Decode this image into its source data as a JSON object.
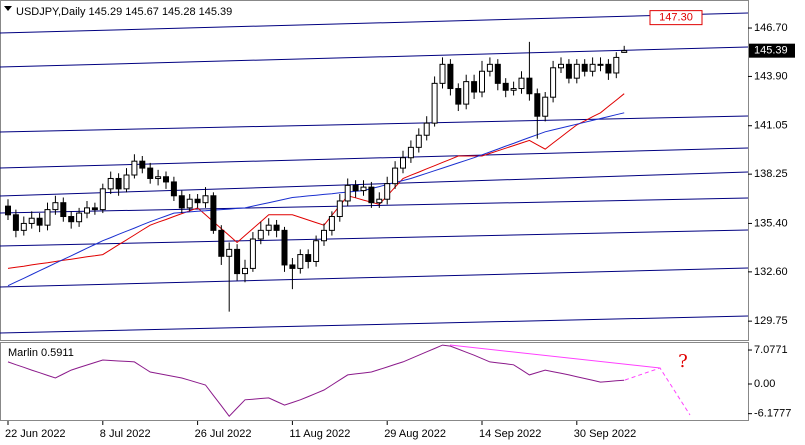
{
  "chart_data": {
    "type": "candlestick",
    "title": "USDJPY,Daily 145.29 145.67 145.28 145.39",
    "categories": [
      "22 Jun 2022",
      null,
      null,
      null,
      null,
      null,
      null,
      null,
      null,
      null,
      null,
      null,
      "8 Jul 2022",
      null,
      null,
      null,
      null,
      null,
      null,
      null,
      null,
      null,
      null,
      null,
      "26 Jul 2022",
      null,
      null,
      null,
      null,
      null,
      null,
      null,
      null,
      null,
      null,
      null,
      "11 Aug 2022",
      null,
      null,
      null,
      null,
      null,
      null,
      null,
      null,
      null,
      null,
      null,
      "29 Aug 2022",
      null,
      null,
      null,
      null,
      null,
      null,
      null,
      null,
      null,
      null,
      null,
      "14 Sep 2022",
      null,
      null,
      null,
      null,
      null,
      null,
      null,
      null,
      null,
      null,
      null,
      "30 Sep 2022",
      null,
      null,
      null,
      null,
      null,
      null
    ],
    "open": [
      136.4,
      135.9,
      135.0,
      135.4,
      135.7,
      135.3,
      136.2,
      136.6,
      135.8,
      135.5,
      136.0,
      136.3,
      136.2,
      137.4,
      138.0,
      137.4,
      138.2,
      139.0,
      138.6,
      138.0,
      138.1,
      137.8,
      137.0,
      136.3,
      136.8,
      136.6,
      137.0,
      135.0,
      133.5,
      133.9,
      132.5,
      132.8,
      134.5,
      135.0,
      135.3,
      135.0,
      133.0,
      132.8,
      133.6,
      133.2,
      134.4,
      135.0,
      135.8,
      136.7,
      137.6,
      137.3,
      137.5,
      136.6,
      136.8,
      137.7,
      138.6,
      139.2,
      139.8,
      140.5,
      141.2,
      143.5,
      144.6,
      143.2,
      142.3,
      143.6,
      143.0,
      144.2,
      144.6,
      143.5,
      143.1,
      143.2,
      143.8,
      142.9,
      141.6,
      142.7,
      144.4,
      144.6,
      143.8,
      144.6,
      144.2,
      144.6,
      144.6,
      144.1,
      145.29
    ],
    "high": [
      136.8,
      136.2,
      135.8,
      136.1,
      136.0,
      136.6,
      137.0,
      136.9,
      136.1,
      136.3,
      136.7,
      136.6,
      137.7,
      138.4,
      138.3,
      138.6,
      139.4,
      139.3,
      138.9,
      138.5,
      138.4,
      138.1,
      137.3,
      137.1,
      137.1,
      137.5,
      137.2,
      135.3,
      134.3,
      134.2,
      133.3,
      134.9,
      135.5,
      135.7,
      135.6,
      135.2,
      133.4,
      133.9,
      133.9,
      134.7,
      135.4,
      136.1,
      137.1,
      138.0,
      137.9,
      137.9,
      137.8,
      137.2,
      138.1,
      139.0,
      139.6,
      140.2,
      140.9,
      141.6,
      143.9,
      145.0,
      144.9,
      143.5,
      144.0,
      144.0,
      144.8,
      145.0,
      144.9,
      143.8,
      143.6,
      144.2,
      145.9,
      143.2,
      143.0,
      144.8,
      145.0,
      144.9,
      144.9,
      144.9,
      145.0,
      145.0,
      144.9,
      145.3,
      145.67
    ],
    "low": [
      135.6,
      134.6,
      134.7,
      135.1,
      134.9,
      135.0,
      135.9,
      135.5,
      135.1,
      135.2,
      135.7,
      135.9,
      136.0,
      137.1,
      137.0,
      137.2,
      138.0,
      138.3,
      137.7,
      137.6,
      137.4,
      136.7,
      136.0,
      136.1,
      136.3,
      136.3,
      134.8,
      133.0,
      130.3,
      132.1,
      132.0,
      132.6,
      134.2,
      134.7,
      134.6,
      132.6,
      131.6,
      132.5,
      132.8,
      132.9,
      134.1,
      134.7,
      135.5,
      136.4,
      136.9,
      137.0,
      136.3,
      136.3,
      136.5,
      137.4,
      138.3,
      138.9,
      139.5,
      140.2,
      141.0,
      143.2,
      142.8,
      141.9,
      142.0,
      142.6,
      142.7,
      143.9,
      143.1,
      142.7,
      142.8,
      142.9,
      142.5,
      140.3,
      141.3,
      142.4,
      144.1,
      143.5,
      143.5,
      143.9,
      143.9,
      144.2,
      143.7,
      143.8,
      145.28
    ],
    "close": [
      135.9,
      135.0,
      135.4,
      135.7,
      135.3,
      136.2,
      136.6,
      135.8,
      135.5,
      136.0,
      136.3,
      136.2,
      137.4,
      138.0,
      137.4,
      138.2,
      139.0,
      138.6,
      138.0,
      138.1,
      137.8,
      137.0,
      136.3,
      136.8,
      136.6,
      137.0,
      135.0,
      133.5,
      133.9,
      132.5,
      132.8,
      134.5,
      135.0,
      135.3,
      135.0,
      133.0,
      132.8,
      133.6,
      133.2,
      134.4,
      135.0,
      135.8,
      136.7,
      137.6,
      137.3,
      137.5,
      136.6,
      136.8,
      137.7,
      138.6,
      139.2,
      139.8,
      140.5,
      141.2,
      143.5,
      144.6,
      143.2,
      142.3,
      143.6,
      143.0,
      144.2,
      144.6,
      143.5,
      143.1,
      143.2,
      143.8,
      142.9,
      141.6,
      142.7,
      144.4,
      144.6,
      143.8,
      144.6,
      144.2,
      144.6,
      144.6,
      144.1,
      145.0,
      145.39
    ],
    "series": [
      {
        "color": "#e00000",
        "values": [
          132.8,
          132.87,
          132.93,
          133,
          133.07,
          133.13,
          133.2,
          133.27,
          133.33,
          133.4,
          133.47,
          133.53,
          133.6,
          133.88,
          134.17,
          134.45,
          134.73,
          135.02,
          135.3,
          135.47,
          135.63,
          135.8,
          135.97,
          136.13,
          136.3,
          135.9,
          135.5,
          135.1,
          134.7,
          134.3,
          134.7,
          135.1,
          135.5,
          135.9,
          135.9,
          135.9,
          135.9,
          135.75,
          135.6,
          135.45,
          135.3,
          135.87,
          136.43,
          137,
          136.88,
          136.75,
          136.63,
          136.5,
          137,
          137.5,
          138,
          138.19,
          138.37,
          138.56,
          138.74,
          138.93,
          139.11,
          139.3,
          139.3,
          139.3,
          139.3,
          139.45,
          139.6,
          139.75,
          139.9,
          140.05,
          140.2,
          139.95,
          139.7,
          140.05,
          140.4,
          140.75,
          141.1,
          141.33,
          141.57,
          141.8,
          142.17,
          142.53,
          142.9
        ]
      },
      {
        "color": "#1a2fd0",
        "values": [
          131.8,
          132.02,
          132.23,
          132.45,
          132.67,
          132.88,
          133.1,
          133.32,
          133.53,
          133.75,
          133.97,
          134.18,
          134.4,
          134.58,
          134.77,
          134.95,
          135.13,
          135.32,
          135.5,
          135.67,
          135.83,
          136,
          136.03,
          136.07,
          136.1,
          136.13,
          136.17,
          136.2,
          136.23,
          136.27,
          136.3,
          136.4,
          136.5,
          136.6,
          136.7,
          136.8,
          136.9,
          136.94,
          136.99,
          137.03,
          137.08,
          137.12,
          137.17,
          137.21,
          137.26,
          137.3,
          137.42,
          137.53,
          137.65,
          137.77,
          137.88,
          138,
          138.15,
          138.3,
          138.45,
          138.6,
          138.75,
          138.9,
          139.05,
          139.2,
          139.37,
          139.53,
          139.7,
          139.87,
          140.03,
          140.2,
          140.37,
          140.53,
          140.7,
          140.81,
          140.92,
          141.03,
          141.14,
          141.25,
          141.36,
          141.47,
          141.58,
          141.69,
          141.8
        ]
      }
    ],
    "ylim": [
      128.66,
      148.32
    ],
    "yticks": [
      {
        "value": 146.7,
        "label": "146.70"
      },
      {
        "value": 143.9,
        "label": "143.90"
      },
      141.05,
      138.25,
      {
        "value": 135.4,
        "label": "135.40"
      },
      {
        "value": 132.6,
        "label": "132.60"
      },
      129.75
    ],
    "price_labels": [
      {
        "value": 147.3,
        "label": "147.30"
      }
    ],
    "indicator": {
      "title": "Marlin 0.5911",
      "color": "#8b1a8b",
      "values": [
        4.6,
        4.03,
        3.47,
        2.9,
        2.35,
        1.8,
        1.25,
        2.08,
        2.9,
        3.43,
        3.95,
        4.48,
        5,
        4.9,
        4.8,
        4.7,
        4.6,
        3.55,
        2.5,
        2.19,
        1.88,
        1.56,
        1.25,
        0.77,
        0.28,
        -0.2,
        -2.37,
        -4.53,
        -6.7,
        -5,
        -3.3,
        -3.17,
        -3.03,
        -2.9,
        -3.65,
        -4.4,
        -3.85,
        -3.3,
        -2.62,
        -1.93,
        -1.25,
        -0.2,
        0.85,
        1.9,
        2.1,
        2.3,
        2.5,
        3.03,
        3.55,
        4.08,
        4.6,
        5.3,
        6,
        6.7,
        7.4,
        8.1,
        7.9,
        7.27,
        6.63,
        6,
        5.3,
        4.6,
        4.4,
        4.2,
        4,
        2.95,
        1.9,
        2.4,
        2.9,
        2.57,
        2.23,
        1.9,
        1.53,
        1.15,
        0.78,
        0.4,
        0.53,
        0.67,
        0.8
      ],
      "ylim": [
        -7.5,
        8.75
      ],
      "yticks": [
        7.0771,
        {
          "value": 0,
          "label": "0.00"
        },
        -6.1777
      ],
      "annotation": "?"
    }
  }
}
